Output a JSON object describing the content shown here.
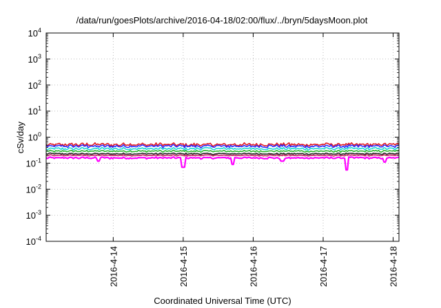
{
  "chart_data": {
    "type": "line",
    "title": "/data/run/goesPlots/archive/2016-04-18/02:00/flux/../bryn/5daysMoon.plot",
    "xlabel": "Coordinated Universal Time (UTC)",
    "ylabel": "cSv/day",
    "yscale": "log",
    "ylim": [
      0.0001,
      10000
    ],
    "xlim": [
      "2016-04-13 01:00",
      "2016-04-18 02:00"
    ],
    "grid": true,
    "y_ticks": [
      {
        "value": 0.0001,
        "mantissa": "10",
        "exponent": "-4"
      },
      {
        "value": 0.001,
        "mantissa": "10",
        "exponent": "-3"
      },
      {
        "value": 0.01,
        "mantissa": "10",
        "exponent": "-2"
      },
      {
        "value": 0.1,
        "mantissa": "10",
        "exponent": "-1"
      },
      {
        "value": 1,
        "mantissa": "10",
        "exponent": "0"
      },
      {
        "value": 10,
        "mantissa": "10",
        "exponent": "1"
      },
      {
        "value": 100,
        "mantissa": "10",
        "exponent": "2"
      },
      {
        "value": 1000,
        "mantissa": "10",
        "exponent": "3"
      },
      {
        "value": 10000,
        "mantissa": "10",
        "exponent": "4"
      }
    ],
    "x_ticks": [
      {
        "label": "2016-4-14",
        "value": "2016-04-14 00:00"
      },
      {
        "label": "2016-4-15",
        "value": "2016-04-15 00:00"
      },
      {
        "label": "2016-4-16",
        "value": "2016-04-16 00:00"
      },
      {
        "label": "2016-4-17",
        "value": "2016-04-17 00:00"
      },
      {
        "label": "2016-4-18",
        "value": "2016-04-18 00:00"
      }
    ],
    "series": [
      {
        "color": "#e0151f",
        "level": 0.52,
        "variation": 0.18
      },
      {
        "color": "#2b2bff",
        "level": 0.45,
        "variation": 0.16
      },
      {
        "color": "#1fd6d6",
        "level": 0.36,
        "variation": 0.14
      },
      {
        "color": "#2ab52a",
        "level": 0.29,
        "variation": 0.1
      },
      {
        "color": "#222222",
        "level": 0.23,
        "variation": 0.08
      },
      {
        "color": "#c2185b",
        "level": 0.2,
        "variation": 0.07
      },
      {
        "color": "#ff00ff",
        "level": 0.16,
        "variation": 0.1
      }
    ],
    "dips": [
      {
        "x": "2016-04-15 00:00",
        "value": 0.07
      },
      {
        "x": "2016-04-15 17:00",
        "value": 0.09
      },
      {
        "x": "2016-04-17 08:00",
        "value": 0.055
      },
      {
        "x": "2016-04-13 19:00",
        "value": 0.12
      },
      {
        "x": "2016-04-16 10:00",
        "value": 0.12
      },
      {
        "x": "2016-04-17 21:00",
        "value": 0.11
      }
    ]
  }
}
